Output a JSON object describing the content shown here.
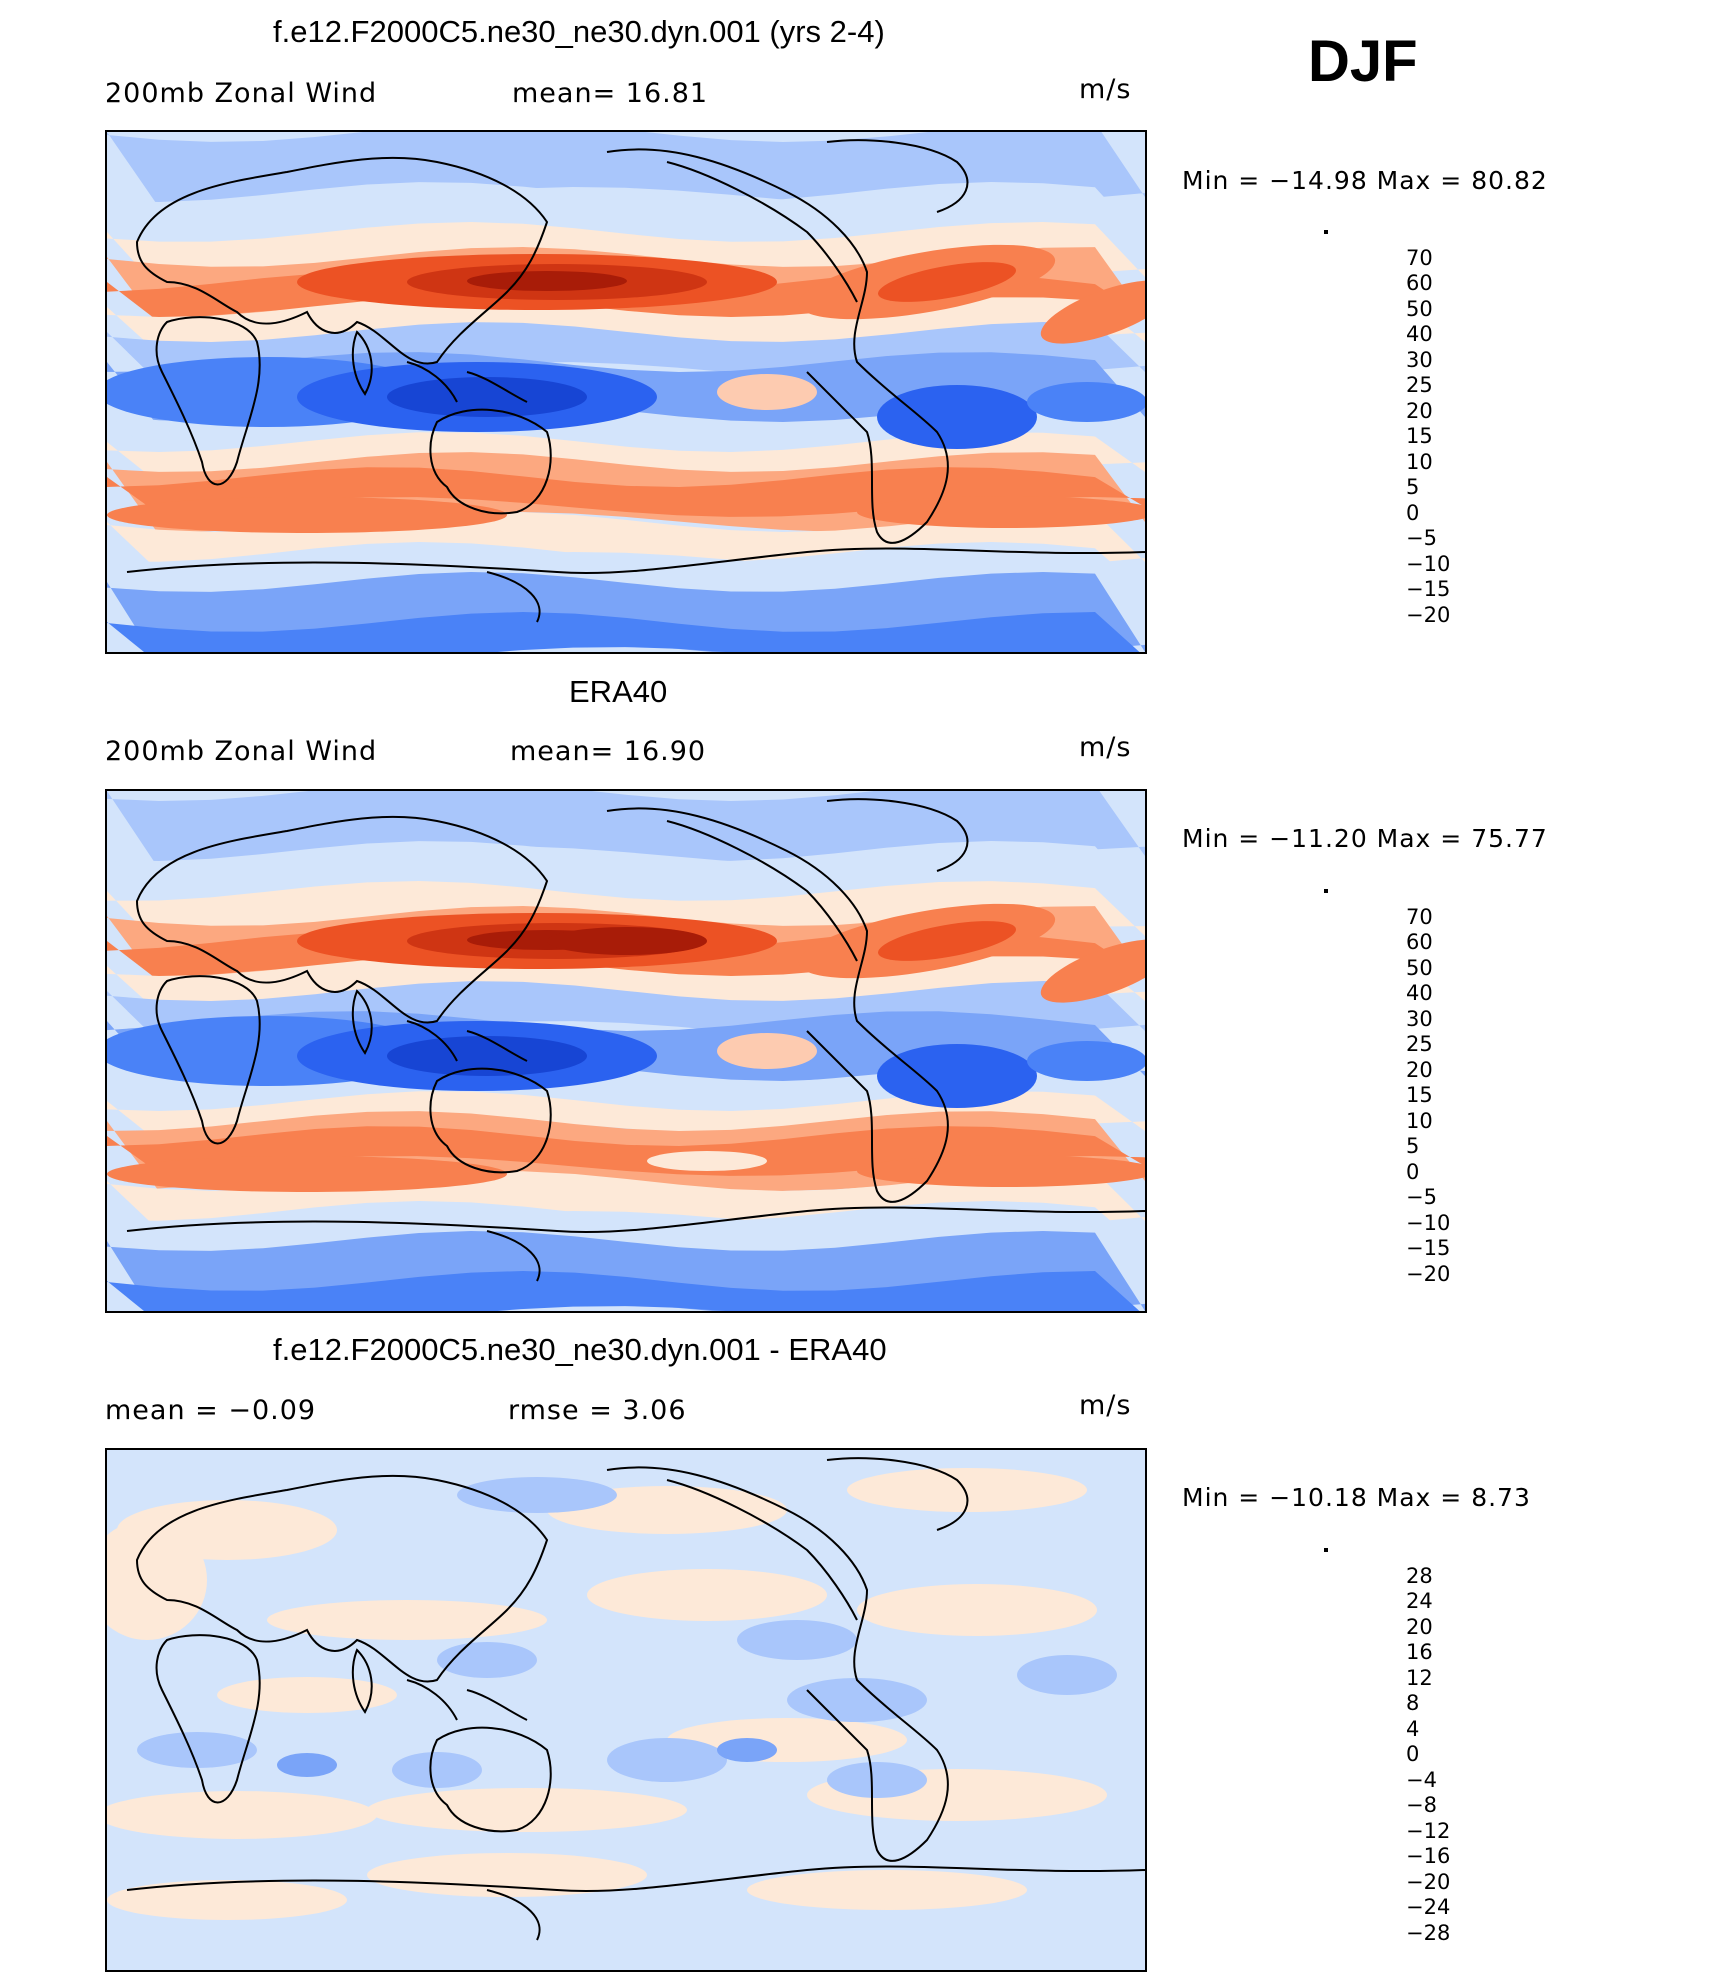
{
  "season": "DJF",
  "colors": {
    "levels": [
      "#0a0e7a",
      "#0f2bb0",
      "#1745d4",
      "#2b62f0",
      "#4a82f7",
      "#7aa4f8",
      "#a9c6fb",
      "#d3e4fb",
      "#fde9d8",
      "#fdcbb0",
      "#fca880",
      "#f8804f",
      "#ec5224",
      "#cf3513",
      "#a81c08",
      "#7a0a06"
    ]
  },
  "panels": [
    {
      "id": "model",
      "title": "f.e12.F2000C5.ne30_ne30.dyn.001 (yrs 2-4)",
      "left_label": "200mb  Zonal  Wind",
      "mid_label": "mean=   16.81",
      "units": "m/s",
      "minmax": "Min  =  −14.98  Max  =    80.82",
      "colorbar_ticks": [
        "70",
        "60",
        "50",
        "40",
        "30",
        "25",
        "20",
        "15",
        "10",
        "5",
        "0",
        "−5",
        "−10",
        "−15",
        "−20"
      ],
      "kind": "field",
      "variant": 0
    },
    {
      "id": "obs",
      "title": "ERA40",
      "left_label": "200mb  Zonal  Wind",
      "mid_label": "mean=   16.90",
      "units": "m/s",
      "minmax": "Min  =  −11.20  Max  =    75.77",
      "colorbar_ticks": [
        "70",
        "60",
        "50",
        "40",
        "30",
        "25",
        "20",
        "15",
        "10",
        "5",
        "0",
        "−5",
        "−10",
        "−15",
        "−20"
      ],
      "kind": "field",
      "variant": 1
    },
    {
      "id": "diff",
      "title": "f.e12.F2000C5.ne30_ne30.dyn.001 - ERA40",
      "left_label": "mean  =    −0.09",
      "mid_label": "rmse  =     3.06",
      "units": "m/s",
      "minmax": "Min  =  −10.18  Max  =     8.73",
      "colorbar_ticks": [
        "28",
        "24",
        "20",
        "16",
        "12",
        "8",
        "4",
        "0",
        "−4",
        "−8",
        "−12",
        "−16",
        "−20",
        "−24",
        "−28"
      ],
      "kind": "diff",
      "variant": 2
    }
  ]
}
